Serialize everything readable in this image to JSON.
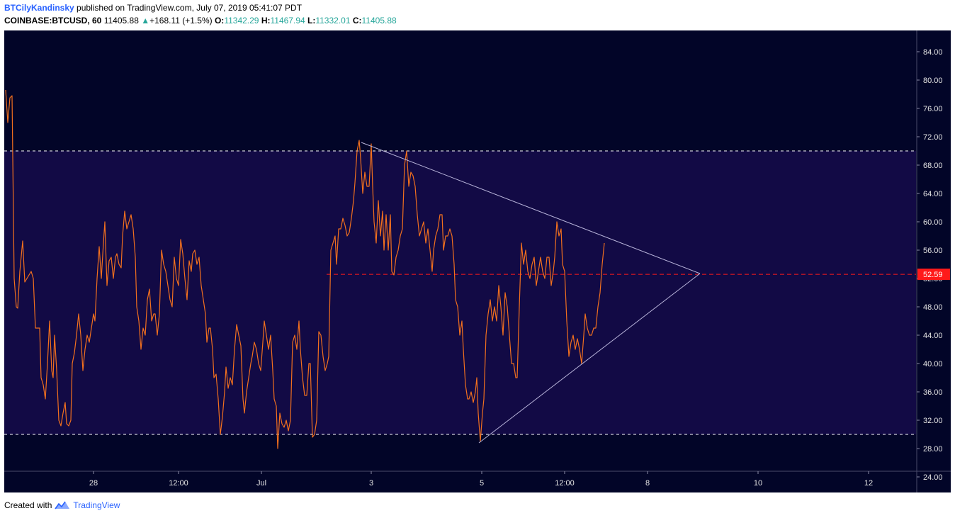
{
  "header": {
    "author": "BTCilyKandinsky",
    "published_text": "published on TradingView.com, July 07, 2019 05:41:07 PDT",
    "symbol": "COINBASE:BTCUSD, 60",
    "last_price": "11405.88",
    "change": "+168.11 (+1.5%)",
    "open_label": "O:",
    "open": "11342.29",
    "high_label": "H:",
    "high": "11467.94",
    "low_label": "L:",
    "low": "11332.01",
    "close_label": "C:",
    "close": "11405.88"
  },
  "footer": {
    "created_with": "Created with",
    "brand": "TradingView"
  },
  "chart_data": {
    "type": "line",
    "ylim": [
      22,
      86
    ],
    "xlim": [
      0,
      1287
    ],
    "y_ticks": [
      "24.00",
      "28.00",
      "32.00",
      "36.00",
      "40.00",
      "44.00",
      "48.00",
      "52.00",
      "56.00",
      "60.00",
      "64.00",
      "68.00",
      "72.00",
      "76.00",
      "80.00",
      "84.00"
    ],
    "x_ticks": [
      {
        "label": "28",
        "x": 126
      },
      {
        "label": "12:00",
        "x": 246
      },
      {
        "label": "Jul",
        "x": 363
      },
      {
        "label": "3",
        "x": 518
      },
      {
        "label": "5",
        "x": 674
      },
      {
        "label": "12:00",
        "x": 791
      },
      {
        "label": "8",
        "x": 908
      },
      {
        "label": "10",
        "x": 1064
      },
      {
        "label": "12",
        "x": 1220
      }
    ],
    "current_value": "52.59",
    "current_y": 52.59,
    "levels": {
      "upper": 70,
      "lower": 30
    },
    "colors": {
      "background": "#020528",
      "band": "#120a45",
      "line": "#f2701e",
      "trendline": "#b7b3d9",
      "level": "#ffffff",
      "current": "#ff1a1a",
      "axis_text": "#e6e6e6"
    },
    "trendlines": [
      {
        "x1": 504,
        "y1": 71.2,
        "x2": 982,
        "y2": 52.7
      },
      {
        "x1": 670,
        "y1": 28.8,
        "x2": 982,
        "y2": 52.7
      }
    ],
    "series": [
      {
        "points": [
          [
            2,
            78.6
          ],
          [
            5,
            74
          ],
          [
            8,
            77.5
          ],
          [
            11,
            77.8
          ],
          [
            14,
            52
          ],
          [
            17,
            48
          ],
          [
            19,
            47.8
          ],
          [
            22,
            53
          ],
          [
            26,
            57.3
          ],
          [
            29,
            51.5
          ],
          [
            32,
            52
          ],
          [
            35,
            52.5
          ],
          [
            38,
            53
          ],
          [
            41,
            52
          ],
          [
            44,
            45
          ],
          [
            47,
            45
          ],
          [
            50,
            45
          ],
          [
            52,
            38
          ],
          [
            55,
            37
          ],
          [
            58,
            35
          ],
          [
            61,
            40
          ],
          [
            64,
            46
          ],
          [
            67,
            39
          ],
          [
            69,
            38
          ],
          [
            71,
            44
          ],
          [
            74,
            39
          ],
          [
            77,
            32
          ],
          [
            80,
            31.2
          ],
          [
            83,
            33
          ],
          [
            86,
            34.5
          ],
          [
            88,
            31.5
          ],
          [
            91,
            31.2
          ],
          [
            94,
            32
          ],
          [
            96,
            40
          ],
          [
            99,
            41.5
          ],
          [
            102,
            44
          ],
          [
            105,
            47
          ],
          [
            108,
            44
          ],
          [
            111,
            39
          ],
          [
            114,
            42
          ],
          [
            117,
            44
          ],
          [
            120,
            43
          ],
          [
            123,
            45
          ],
          [
            126,
            47
          ],
          [
            128,
            46
          ],
          [
            131,
            52
          ],
          [
            134,
            56.5
          ],
          [
            137,
            52
          ],
          [
            140,
            57
          ],
          [
            142,
            60
          ],
          [
            145,
            51
          ],
          [
            148,
            54.5
          ],
          [
            151,
            55
          ],
          [
            154,
            52
          ],
          [
            157,
            55
          ],
          [
            159,
            55.5
          ],
          [
            162,
            54
          ],
          [
            165,
            53.5
          ],
          [
            167,
            58
          ],
          [
            170,
            61.5
          ],
          [
            173,
            59
          ],
          [
            176,
            60
          ],
          [
            179,
            61
          ],
          [
            182,
            59
          ],
          [
            185,
            55
          ],
          [
            187,
            48
          ],
          [
            190,
            46
          ],
          [
            193,
            42
          ],
          [
            196,
            45
          ],
          [
            199,
            44
          ],
          [
            202,
            49
          ],
          [
            205,
            50.5
          ],
          [
            208,
            46
          ],
          [
            211,
            47
          ],
          [
            213,
            47
          ],
          [
            216,
            44
          ],
          [
            219,
            47
          ],
          [
            222,
            56
          ],
          [
            225,
            54
          ],
          [
            228,
            53
          ],
          [
            231,
            51
          ],
          [
            234,
            49
          ],
          [
            237,
            48
          ],
          [
            240,
            55
          ],
          [
            243,
            52
          ],
          [
            246,
            51
          ],
          [
            249,
            57.5
          ],
          [
            252,
            55.5
          ],
          [
            255,
            52
          ],
          [
            258,
            49
          ],
          [
            261,
            54.5
          ],
          [
            264,
            53
          ],
          [
            266,
            55.5
          ],
          [
            269,
            56
          ],
          [
            272,
            54
          ],
          [
            275,
            55
          ],
          [
            278,
            51
          ],
          [
            281,
            49
          ],
          [
            284,
            47
          ],
          [
            286,
            43
          ],
          [
            289,
            45
          ],
          [
            291,
            45
          ],
          [
            294,
            42
          ],
          [
            296,
            38
          ],
          [
            299,
            38.5
          ],
          [
            302,
            35
          ],
          [
            305,
            30
          ],
          [
            308,
            32.5
          ],
          [
            311,
            36
          ],
          [
            313,
            39.5
          ],
          [
            316,
            36.5
          ],
          [
            319,
            38
          ],
          [
            322,
            37
          ],
          [
            325,
            42
          ],
          [
            328,
            45.5
          ],
          [
            331,
            44
          ],
          [
            334,
            42.5
          ],
          [
            337,
            35
          ],
          [
            339,
            33
          ],
          [
            342,
            36
          ],
          [
            345,
            38
          ],
          [
            348,
            40
          ],
          [
            350,
            41
          ],
          [
            353,
            43
          ],
          [
            356,
            42
          ],
          [
            359,
            40
          ],
          [
            362,
            39
          ],
          [
            365,
            43
          ],
          [
            367,
            46
          ],
          [
            370,
            44
          ],
          [
            373,
            42
          ],
          [
            376,
            44
          ],
          [
            379,
            39
          ],
          [
            381,
            35
          ],
          [
            384,
            34
          ],
          [
            386,
            28
          ],
          [
            389,
            33
          ],
          [
            392,
            31.5
          ],
          [
            395,
            31
          ],
          [
            398,
            32
          ],
          [
            401,
            30.5
          ],
          [
            404,
            32
          ],
          [
            407,
            43
          ],
          [
            410,
            44
          ],
          [
            413,
            42
          ],
          [
            416,
            46
          ],
          [
            418,
            42
          ],
          [
            421,
            38
          ],
          [
            424,
            35.5
          ],
          [
            427,
            35.5
          ],
          [
            430,
            40
          ],
          [
            432,
            40
          ],
          [
            435,
            29.6
          ],
          [
            438,
            30
          ],
          [
            441,
            32
          ],
          [
            444,
            44.5
          ],
          [
            447,
            44
          ],
          [
            450,
            41
          ],
          [
            453,
            39
          ],
          [
            456,
            40
          ],
          [
            458,
            41
          ],
          [
            461,
            56
          ],
          [
            464,
            57
          ],
          [
            467,
            58
          ],
          [
            469,
            54
          ],
          [
            472,
            59
          ],
          [
            475,
            59
          ],
          [
            478,
            60.5
          ],
          [
            481,
            59.5
          ],
          [
            484,
            58
          ],
          [
            487,
            58.5
          ],
          [
            490,
            60.5
          ],
          [
            493,
            63
          ],
          [
            495,
            65.5
          ],
          [
            498,
            70
          ],
          [
            501,
            71.5
          ],
          [
            503,
            69
          ],
          [
            506,
            64
          ],
          [
            509,
            67
          ],
          [
            512,
            65
          ],
          [
            515,
            65
          ],
          [
            518,
            71
          ],
          [
            520,
            65
          ],
          [
            522,
            60
          ],
          [
            525,
            57
          ],
          [
            528,
            63
          ],
          [
            531,
            58
          ],
          [
            534,
            61.5
          ],
          [
            536,
            56
          ],
          [
            539,
            61
          ],
          [
            542,
            56
          ],
          [
            545,
            61
          ],
          [
            547,
            53
          ],
          [
            550,
            52.5
          ],
          [
            553,
            55
          ],
          [
            556,
            56
          ],
          [
            559,
            58
          ],
          [
            562,
            59
          ],
          [
            565,
            68
          ],
          [
            568,
            70
          ],
          [
            571,
            65
          ],
          [
            574,
            67
          ],
          [
            577,
            66.5
          ],
          [
            580,
            65
          ],
          [
            583,
            61
          ],
          [
            586,
            58
          ],
          [
            589,
            59
          ],
          [
            592,
            60
          ],
          [
            595,
            57
          ],
          [
            598,
            59
          ],
          [
            601,
            56
          ],
          [
            604,
            53
          ],
          [
            606,
            56
          ],
          [
            609,
            58
          ],
          [
            612,
            59
          ],
          [
            615,
            61
          ],
          [
            618,
            61
          ],
          [
            620,
            56
          ],
          [
            623,
            58
          ],
          [
            626,
            58
          ],
          [
            629,
            59
          ],
          [
            632,
            58
          ],
          [
            635,
            54
          ],
          [
            637,
            49
          ],
          [
            640,
            48
          ],
          [
            643,
            44
          ],
          [
            646,
            46
          ],
          [
            648,
            42
          ],
          [
            651,
            37
          ],
          [
            654,
            35
          ],
          [
            656,
            35
          ],
          [
            659,
            36
          ],
          [
            662,
            34.5
          ],
          [
            665,
            36
          ],
          [
            667,
            38
          ],
          [
            669,
            33
          ],
          [
            672,
            29
          ],
          [
            675,
            33
          ],
          [
            677,
            35
          ],
          [
            680,
            44
          ],
          [
            683,
            47
          ],
          [
            686,
            49
          ],
          [
            689,
            46
          ],
          [
            692,
            48
          ],
          [
            695,
            46
          ],
          [
            698,
            51
          ],
          [
            701,
            48
          ],
          [
            704,
            44
          ],
          [
            707,
            50
          ],
          [
            710,
            48
          ],
          [
            713,
            44
          ],
          [
            716,
            40
          ],
          [
            719,
            40
          ],
          [
            722,
            38
          ],
          [
            724,
            38
          ],
          [
            727,
            48
          ],
          [
            730,
            57
          ],
          [
            733,
            54
          ],
          [
            736,
            56
          ],
          [
            739,
            53
          ],
          [
            742,
            52
          ],
          [
            745,
            54
          ],
          [
            748,
            55
          ],
          [
            751,
            51
          ],
          [
            754,
            53
          ],
          [
            757,
            55
          ],
          [
            760,
            53
          ],
          [
            763,
            52
          ],
          [
            766,
            55
          ],
          [
            769,
            55
          ],
          [
            772,
            51
          ],
          [
            775,
            53
          ],
          [
            777,
            55
          ],
          [
            780,
            60
          ],
          [
            783,
            58
          ],
          [
            786,
            59
          ],
          [
            788,
            54
          ],
          [
            791,
            53
          ],
          [
            794,
            46
          ],
          [
            797,
            41
          ],
          [
            800,
            43
          ],
          [
            803,
            44
          ],
          [
            806,
            42
          ],
          [
            809,
            43.5
          ],
          [
            812,
            42
          ],
          [
            815,
            40
          ],
          [
            818,
            44
          ],
          [
            820,
            47
          ],
          [
            823,
            45
          ],
          [
            826,
            44
          ],
          [
            829,
            44
          ],
          [
            832,
            45
          ],
          [
            835,
            45
          ],
          [
            838,
            48
          ],
          [
            841,
            50
          ],
          [
            844,
            54
          ],
          [
            847,
            57
          ]
        ]
      }
    ]
  }
}
